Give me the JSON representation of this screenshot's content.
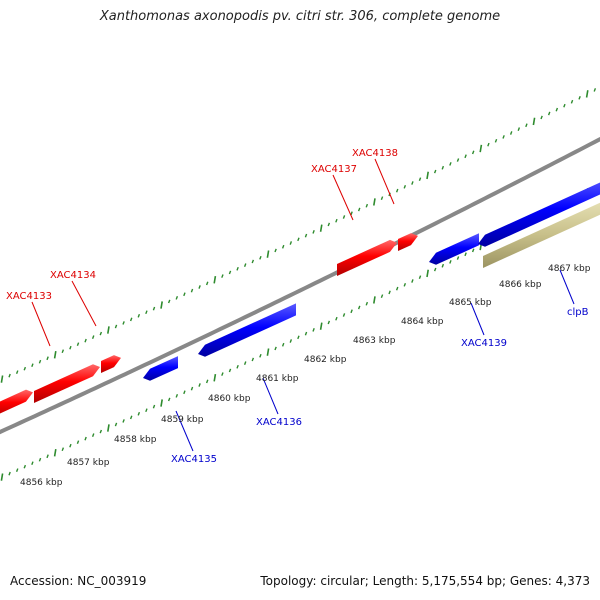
{
  "title": "Xanthomonas axonopodis pv. citri str. 306, complete genome",
  "accession_label": "Accession: NC_003919",
  "summary_label": "Topology: circular; Length: 5,175,554 bp; Genes: 4,373",
  "colors": {
    "forward_gene": "#ff0000",
    "reverse_gene": "#0000ff",
    "feature": "#c8c08a",
    "backbone": "#888888",
    "tick": "#2e8b2e",
    "forward_label": "#dd0000",
    "reverse_label": "#0000cc"
  },
  "scale_labels": [
    "4856 kbp",
    "4857 kbp",
    "4858 kbp",
    "4859 kbp",
    "4860 kbp",
    "4861 kbp",
    "4862 kbp",
    "4863 kbp",
    "4864 kbp",
    "4865 kbp",
    "4866 kbp",
    "4867 kbp"
  ],
  "genes": [
    {
      "name": "",
      "strand": "forward"
    },
    {
      "name": "XAC4133",
      "strand": "forward"
    },
    {
      "name": "XAC4134",
      "strand": "forward"
    },
    {
      "name": "XAC4135",
      "strand": "reverse"
    },
    {
      "name": "XAC4136",
      "strand": "reverse"
    },
    {
      "name": "XAC4137",
      "strand": "forward"
    },
    {
      "name": "XAC4138",
      "strand": "forward"
    },
    {
      "name": "XAC4139",
      "strand": "reverse"
    },
    {
      "name": "clpB",
      "strand": "reverse"
    }
  ]
}
